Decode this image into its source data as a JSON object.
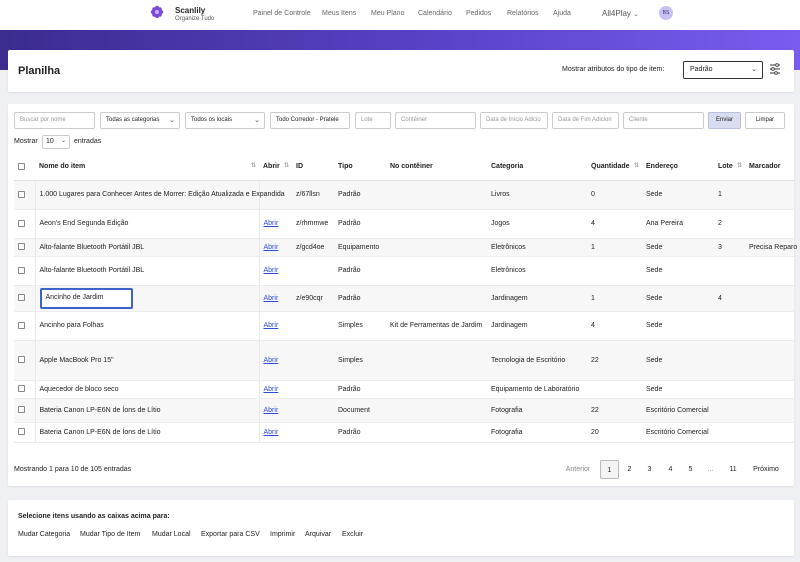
{
  "brand": {
    "name": "Scanlily",
    "tagline": "Organize Tudo",
    "logo_icon": "flower-logo-icon",
    "accent": "#7a4ad8"
  },
  "nav": [
    "Painel de Controle",
    "Meus Itens",
    "Meu Plano",
    "Calendário",
    "Pedidos",
    "Relatórios",
    "Ajuda"
  ],
  "account": {
    "name": "All4Play",
    "avatar_initials": "BS"
  },
  "header": {
    "title": "Planilha",
    "type_label": "Mostrar atributos do tipo de item:",
    "type_value": "Padrão"
  },
  "filters": {
    "search_placeholder": "Buscar por nome",
    "category_value": "Todas as categorias",
    "location_value": "Todos os locais",
    "corridor_value": "Todo Corredor - Pratele",
    "lot_placeholder": "Lote",
    "container_placeholder": "Contêiner",
    "start_date_placeholder": "Data de Início Adicio",
    "end_date_placeholder": "Data de Fim Adicion",
    "client_placeholder": "Cliente",
    "send_label": "Enviar",
    "clear_label": "Limpar"
  },
  "length": {
    "show_label": "Mostrar",
    "value": "10",
    "entries_label": "entradas"
  },
  "table": {
    "headers": [
      "Nome do item",
      "Abrir",
      "ID",
      "Tipo",
      "No contêiner",
      "Categoria",
      "Quantidade",
      "Endereço",
      "Lote",
      "Marcador"
    ],
    "rows": [
      {
        "name": "1.000 Lugares para Conhecer Antes de Morrer: Edição Atualizada e Expandida",
        "open": "",
        "id": "z/67llsn",
        "type": "Padrão",
        "container": "",
        "category": "Livros",
        "qty": "0",
        "address": "Sede",
        "lot": "1",
        "marker": ""
      },
      {
        "name": "Aeon's End Segunda Edição",
        "open": "Abrir",
        "id": "z/rhmmwe",
        "type": "Padrão",
        "container": "",
        "category": "Jogos",
        "qty": "4",
        "address": "Ana Pereira",
        "lot": "2",
        "marker": ""
      },
      {
        "name": "Alto-falante Bluetooth Portátil JBL",
        "open": "Abrir",
        "id": "z/gcd4oe",
        "type": "Equipamento",
        "container": "",
        "category": "Eletrônicos",
        "qty": "1",
        "address": "Sede",
        "lot": "3",
        "marker": "Precisa Reparo"
      },
      {
        "name": "Alto-falante Bluetooth Portátil JBL",
        "open": "Abrir",
        "id": "",
        "type": "Padrão",
        "container": "",
        "category": "Eletrônicos",
        "qty": "",
        "address": "Sede",
        "lot": "",
        "marker": ""
      },
      {
        "name": "Ancinho de Jardim",
        "open": "Abrir",
        "id": "z/e90cqr",
        "type": "Padrão",
        "container": "",
        "category": "Jardinagem",
        "qty": "1",
        "address": "Sede",
        "lot": "4",
        "marker": ""
      },
      {
        "name": "Ancinho para Folhas",
        "open": "Abrir",
        "id": "",
        "type": "Simples",
        "container": "Kit de Ferramentas de Jardim",
        "category": "Jardinagem",
        "qty": "4",
        "address": "Sede",
        "lot": "",
        "marker": ""
      },
      {
        "name": "Apple MacBook Pro 15\"",
        "open": "Abrir",
        "id": "",
        "type": "Simples",
        "container": "",
        "category": "Tecnologia de Escritório",
        "qty": "22",
        "address": "Sede",
        "lot": "",
        "marker": ""
      },
      {
        "name": "Aquecedor de bloco seco",
        "open": "Abrir",
        "id": "",
        "type": "Padrão",
        "container": "",
        "category": "Equipamento de Laboratório",
        "qty": "",
        "address": "Sede",
        "lot": "",
        "marker": ""
      },
      {
        "name": "Bateria Canon LP-E6N de Íons de Lítio",
        "open": "Abrir",
        "id": "",
        "type": "Document",
        "container": "",
        "category": "Fotografia",
        "qty": "22",
        "address": "Escritório Comercial",
        "lot": "",
        "marker": ""
      },
      {
        "name": "Bateria Canon LP-E6N de Íons de Lítio",
        "open": "Abrir",
        "id": "",
        "type": "Padrão",
        "container": "",
        "category": "Fotografia",
        "qty": "20",
        "address": "Escritório Comercial",
        "lot": "",
        "marker": ""
      }
    ]
  },
  "footer": {
    "info": "Mostrando 1 para 10 de 105 entradas",
    "prev": "Anterior",
    "pages": [
      "1",
      "2",
      "3",
      "4",
      "5",
      "...",
      "11"
    ],
    "next": "Próximo"
  },
  "bulk": {
    "title": "Selecione itens usando as caixas acima para:",
    "actions": [
      "Mudar Categoria",
      "Mudar Tipo de Item",
      "Mudar Local",
      "Exportar para CSV",
      "Imprimir",
      "Arquivar",
      "Excluir"
    ]
  }
}
